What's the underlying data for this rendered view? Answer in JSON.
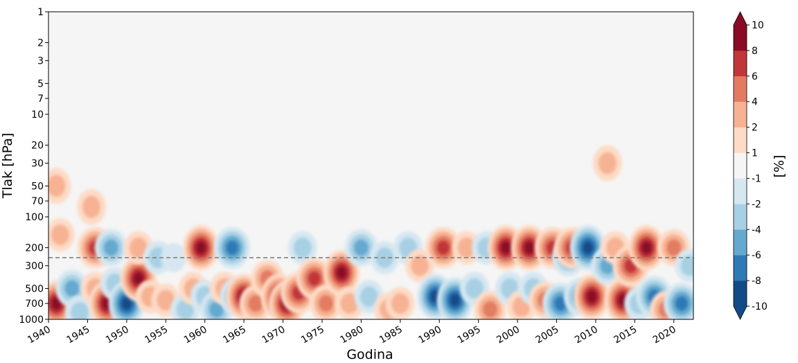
{
  "chart_data": {
    "type": "heatmap",
    "xlabel": "Godina",
    "ylabel": "Tlak [hPa]",
    "colorbar_label": "[%]",
    "x_range": [
      1940,
      2022.5
    ],
    "x_ticks": [
      1940,
      1945,
      1950,
      1955,
      1960,
      1965,
      1970,
      1975,
      1980,
      1985,
      1990,
      1995,
      2000,
      2005,
      2010,
      2015,
      2020
    ],
    "y_scale": "log",
    "y_inverted": true,
    "y_range": [
      1000,
      1
    ],
    "y_ticks": [
      1,
      2,
      3,
      5,
      7,
      10,
      20,
      30,
      50,
      70,
      100,
      200,
      300,
      500,
      700,
      1000
    ],
    "reference_line": {
      "pressure": 250,
      "style": "dashed",
      "color": "#808080"
    },
    "colorbar": {
      "levels": [
        -10,
        -8,
        -6,
        -4,
        -2,
        -1,
        1,
        2,
        4,
        6,
        8,
        10
      ],
      "tick_labels": [
        "-10",
        "-8",
        "-6",
        "-4",
        "-2",
        "-1",
        "1",
        "2",
        "4",
        "6",
        "8",
        "10"
      ],
      "colors": [
        "#134b87",
        "#2f79b5",
        "#65a9cf",
        "#a7d0e4",
        "#d6e7f1",
        "#f5f5f5",
        "#fddbc7",
        "#f6b293",
        "#e27b62",
        "#c13639",
        "#8a0b25"
      ],
      "extend": "both"
    },
    "anomaly_blobs": [
      {
        "year": 1941.0,
        "p": 700,
        "v": 9
      },
      {
        "year": 1941.5,
        "p": 150,
        "v": 3
      },
      {
        "year": 1941.0,
        "p": 50,
        "v": 2
      },
      {
        "year": 1943.0,
        "p": 500,
        "v": -5
      },
      {
        "year": 1944.0,
        "p": 850,
        "v": -3
      },
      {
        "year": 1945.5,
        "p": 80,
        "v": 2
      },
      {
        "year": 1946.0,
        "p": 200,
        "v": 7
      },
      {
        "year": 1946.0,
        "p": 500,
        "v": 3
      },
      {
        "year": 1947.5,
        "p": 700,
        "v": 9
      },
      {
        "year": 1948.0,
        "p": 200,
        "v": -6
      },
      {
        "year": 1948.5,
        "p": 450,
        "v": -3
      },
      {
        "year": 1950.0,
        "p": 700,
        "v": -10
      },
      {
        "year": 1951.5,
        "p": 400,
        "v": 9
      },
      {
        "year": 1951.5,
        "p": 200,
        "v": 3
      },
      {
        "year": 1953.0,
        "p": 600,
        "v": 3
      },
      {
        "year": 1954.0,
        "p": 250,
        "v": -3
      },
      {
        "year": 1955.0,
        "p": 650,
        "v": 3
      },
      {
        "year": 1956.0,
        "p": 250,
        "v": -2
      },
      {
        "year": 1957.5,
        "p": 800,
        "v": -3
      },
      {
        "year": 1958.5,
        "p": 500,
        "v": 3
      },
      {
        "year": 1959.5,
        "p": 200,
        "v": 9
      },
      {
        "year": 1960.0,
        "p": 600,
        "v": -4
      },
      {
        "year": 1961.5,
        "p": 800,
        "v": -6
      },
      {
        "year": 1962.5,
        "p": 500,
        "v": 3
      },
      {
        "year": 1963.5,
        "p": 200,
        "v": -7
      },
      {
        "year": 1964.0,
        "p": 600,
        "v": -6
      },
      {
        "year": 1965.0,
        "p": 600,
        "v": 9
      },
      {
        "year": 1966.5,
        "p": 700,
        "v": 5
      },
      {
        "year": 1968.0,
        "p": 400,
        "v": 5
      },
      {
        "year": 1969.5,
        "p": 600,
        "v": 8
      },
      {
        "year": 1970.5,
        "p": 700,
        "v": 10
      },
      {
        "year": 1972.0,
        "p": 550,
        "v": 6
      },
      {
        "year": 1972.5,
        "p": 200,
        "v": -4
      },
      {
        "year": 1974.0,
        "p": 400,
        "v": 6
      },
      {
        "year": 1975.5,
        "p": 700,
        "v": 4
      },
      {
        "year": 1977.5,
        "p": 350,
        "v": 8
      },
      {
        "year": 1978.5,
        "p": 700,
        "v": 3
      },
      {
        "year": 1980.0,
        "p": 200,
        "v": -5
      },
      {
        "year": 1981.0,
        "p": 600,
        "v": -3
      },
      {
        "year": 1983.0,
        "p": 250,
        "v": -4
      },
      {
        "year": 1983.5,
        "p": 800,
        "v": 2
      },
      {
        "year": 1985.0,
        "p": 700,
        "v": 3
      },
      {
        "year": 1986.0,
        "p": 200,
        "v": -4
      },
      {
        "year": 1987.5,
        "p": 300,
        "v": 3
      },
      {
        "year": 1989.5,
        "p": 600,
        "v": -10
      },
      {
        "year": 1990.5,
        "p": 200,
        "v": 7
      },
      {
        "year": 1992.0,
        "p": 650,
        "v": -9
      },
      {
        "year": 1993.5,
        "p": 200,
        "v": 3
      },
      {
        "year": 1994.5,
        "p": 500,
        "v": -3
      },
      {
        "year": 1996.0,
        "p": 200,
        "v": -3
      },
      {
        "year": 1996.5,
        "p": 800,
        "v": 4
      },
      {
        "year": 1998.5,
        "p": 200,
        "v": 9
      },
      {
        "year": 1999.0,
        "p": 500,
        "v": -4
      },
      {
        "year": 2000.5,
        "p": 750,
        "v": 3
      },
      {
        "year": 2001.5,
        "p": 200,
        "v": 8
      },
      {
        "year": 2002.0,
        "p": 500,
        "v": -3
      },
      {
        "year": 2003.5,
        "p": 650,
        "v": 4
      },
      {
        "year": 2004.5,
        "p": 200,
        "v": 6
      },
      {
        "year": 2005.5,
        "p": 700,
        "v": -7
      },
      {
        "year": 2006.5,
        "p": 250,
        "v": -5
      },
      {
        "year": 2007.0,
        "p": 200,
        "v": 7
      },
      {
        "year": 2008.0,
        "p": 600,
        "v": -6
      },
      {
        "year": 2009.0,
        "p": 200,
        "v": -9
      },
      {
        "year": 2009.5,
        "p": 600,
        "v": 8
      },
      {
        "year": 2011.5,
        "p": 300,
        "v": -6
      },
      {
        "year": 2011.5,
        "p": 30,
        "v": 2
      },
      {
        "year": 2012.5,
        "p": 200,
        "v": 3
      },
      {
        "year": 2013.5,
        "p": 650,
        "v": 9
      },
      {
        "year": 2014.5,
        "p": 300,
        "v": 6
      },
      {
        "year": 2015.5,
        "p": 700,
        "v": -4
      },
      {
        "year": 2016.5,
        "p": 200,
        "v": 8
      },
      {
        "year": 2017.5,
        "p": 600,
        "v": -7
      },
      {
        "year": 2019.0,
        "p": 800,
        "v": 4
      },
      {
        "year": 2020.0,
        "p": 200,
        "v": 5
      },
      {
        "year": 2021.0,
        "p": 700,
        "v": -8
      },
      {
        "year": 2022.0,
        "p": 300,
        "v": -4
      }
    ]
  }
}
